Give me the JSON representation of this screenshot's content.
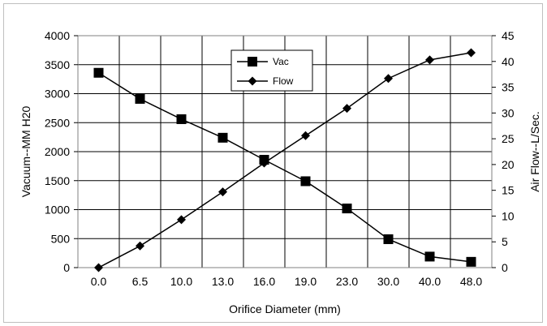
{
  "chart_data": {
    "type": "line",
    "categories": [
      "0.0",
      "6.5",
      "10.0",
      "13.0",
      "16.0",
      "19.0",
      "23.0",
      "30.0",
      "40.0",
      "48.0"
    ],
    "xlabel": "Orifice Diameter (mm)",
    "ylabel": "Vacuum--MM H20",
    "y2label": "Air Flow--L/Sec.",
    "ylim": [
      0,
      4000
    ],
    "y2lim": [
      0,
      45
    ],
    "yticks": [
      "0",
      "500",
      "1000",
      "1500",
      "2000",
      "2500",
      "3000",
      "3500",
      "4000"
    ],
    "y2ticks": [
      "0",
      "5",
      "10",
      "15",
      "20",
      "25",
      "30",
      "35",
      "40",
      "45"
    ],
    "grid": true,
    "legend_position": "top-center",
    "series": [
      {
        "name": "Vac",
        "axis": "left",
        "marker": "square",
        "color": "#000000",
        "values": [
          3360,
          2910,
          2560,
          2240,
          1860,
          1490,
          1020,
          490,
          190,
          100
        ]
      },
      {
        "name": "Flow",
        "axis": "right",
        "marker": "diamond",
        "color": "#000000",
        "values": [
          0,
          4.2,
          9.3,
          14.7,
          20.3,
          25.6,
          30.9,
          36.7,
          40.3,
          41.7
        ]
      }
    ]
  }
}
